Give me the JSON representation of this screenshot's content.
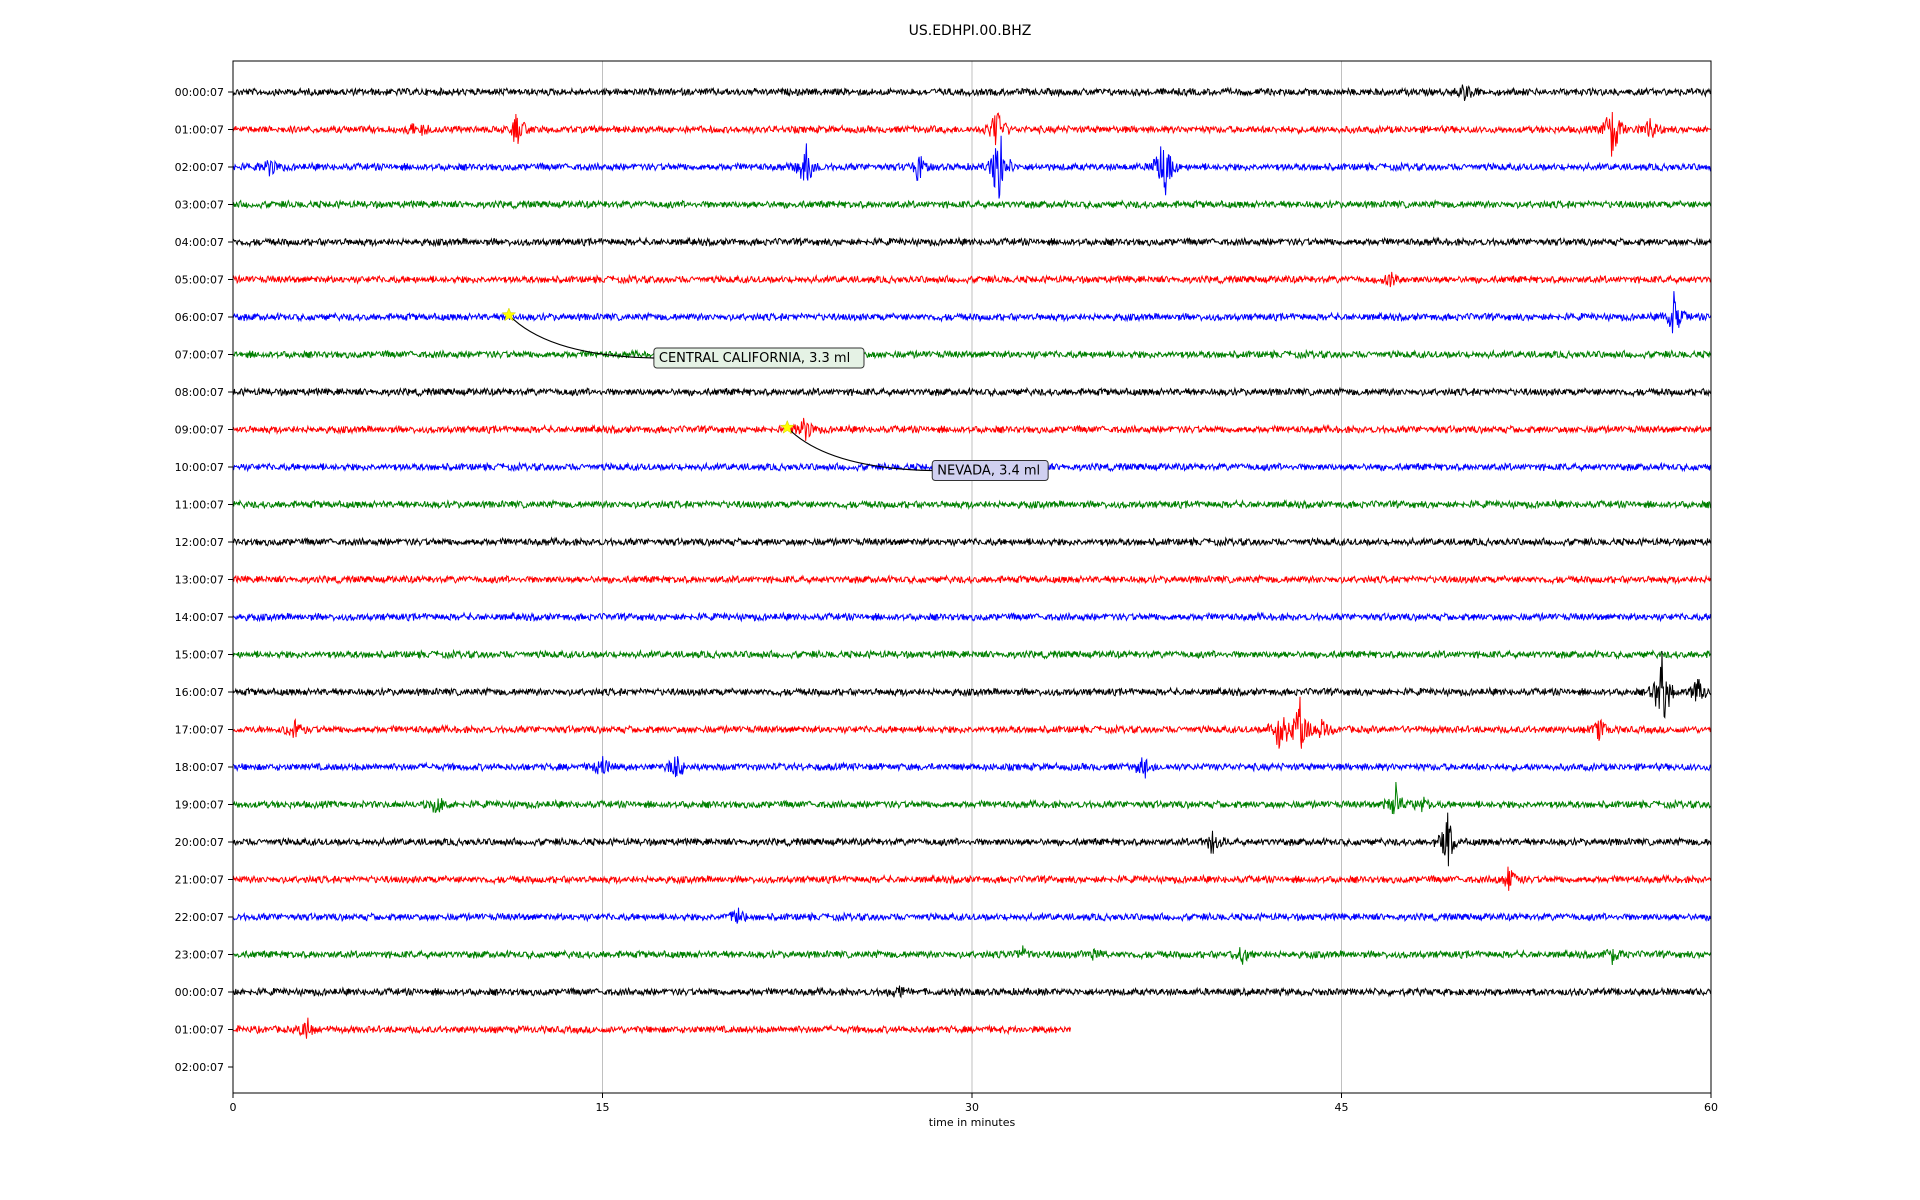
{
  "chart_data": {
    "type": "line",
    "title": "US.EDHPI.00.BHZ",
    "xlabel": "time in minutes",
    "ylabel": "",
    "xlim": [
      0,
      60
    ],
    "x_ticks": [
      0,
      15,
      30,
      45,
      60
    ],
    "grid": "vertical",
    "trace_colors": [
      "#000000",
      "#ff0000",
      "#0000ff",
      "#008000"
    ],
    "rows": [
      {
        "label": "00:00:07",
        "end": 60,
        "events": [
          [
            50,
            0.4
          ]
        ]
      },
      {
        "label": "01:00:07",
        "end": 60,
        "events": [
          [
            7.5,
            0.5
          ],
          [
            11.5,
            0.7
          ],
          [
            31,
            1.0
          ],
          [
            56,
            1.6
          ],
          [
            57.5,
            0.5
          ]
        ]
      },
      {
        "label": "02:00:07",
        "end": 60,
        "events": [
          [
            1.5,
            0.4
          ],
          [
            23.3,
            1.0
          ],
          [
            27.8,
            0.5
          ],
          [
            31.1,
            1.8
          ],
          [
            37.8,
            1.5
          ]
        ]
      },
      {
        "label": "03:00:07",
        "end": 60,
        "events": []
      },
      {
        "label": "04:00:07",
        "end": 60,
        "events": []
      },
      {
        "label": "05:00:07",
        "end": 60,
        "events": [
          [
            47,
            0.3
          ]
        ]
      },
      {
        "label": "06:00:07",
        "end": 60,
        "events": [
          [
            58.5,
            0.9
          ]
        ]
      },
      {
        "label": "07:00:07",
        "end": 60,
        "events": []
      },
      {
        "label": "08:00:07",
        "end": 60,
        "events": []
      },
      {
        "label": "09:00:07",
        "end": 60,
        "events": [
          [
            23.2,
            0.6
          ]
        ]
      },
      {
        "label": "10:00:07",
        "end": 60,
        "events": []
      },
      {
        "label": "11:00:07",
        "end": 60,
        "events": []
      },
      {
        "label": "12:00:07",
        "end": 60,
        "events": []
      },
      {
        "label": "13:00:07",
        "end": 60,
        "events": []
      },
      {
        "label": "14:00:07",
        "end": 60,
        "events": []
      },
      {
        "label": "15:00:07",
        "end": 60,
        "events": []
      },
      {
        "label": "16:00:07",
        "end": 60,
        "events": [
          [
            58,
            1.8
          ],
          [
            59.5,
            0.6
          ]
        ]
      },
      {
        "label": "17:00:07",
        "end": 60,
        "events": [
          [
            2.5,
            0.6
          ],
          [
            42.5,
            1.2
          ],
          [
            43.3,
            1.4
          ],
          [
            44.2,
            0.5
          ],
          [
            55.5,
            0.4
          ]
        ]
      },
      {
        "label": "18:00:07",
        "end": 60,
        "events": [
          [
            15,
            0.4
          ],
          [
            18,
            0.5
          ],
          [
            37,
            0.5
          ]
        ]
      },
      {
        "label": "19:00:07",
        "end": 60,
        "events": [
          [
            8.3,
            0.4
          ],
          [
            47.2,
            0.7
          ],
          [
            48.3,
            0.3
          ]
        ]
      },
      {
        "label": "20:00:07",
        "end": 60,
        "events": [
          [
            39.8,
            0.6
          ],
          [
            49.3,
            1.1
          ]
        ]
      },
      {
        "label": "21:00:07",
        "end": 60,
        "events": [
          [
            51.8,
            0.5
          ]
        ]
      },
      {
        "label": "22:00:07",
        "end": 60,
        "events": [
          [
            20.5,
            0.4
          ]
        ]
      },
      {
        "label": "23:00:07",
        "end": 60,
        "events": [
          [
            32,
            0.3
          ],
          [
            35,
            0.3
          ],
          [
            41,
            0.4
          ],
          [
            56,
            0.4
          ]
        ]
      },
      {
        "label": "00:00:07",
        "end": 60,
        "events": [
          [
            27,
            0.3
          ]
        ]
      },
      {
        "label": "01:00:07",
        "end": 34,
        "events": [
          [
            3,
            0.4
          ]
        ]
      },
      {
        "label": "02:00:07",
        "end": 0,
        "events": []
      }
    ],
    "annotations": [
      {
        "text": "CENTRAL CALIFORNIA, 3.3 ml",
        "row": 6,
        "x": 11.2,
        "marker": "star",
        "marker_color": "#ffff00",
        "box_color": "#e5f2e5"
      },
      {
        "text": "NEVADA, 3.4 ml",
        "row": 9,
        "x": 22.5,
        "marker": "star",
        "marker_color": "#ffff00",
        "box_color": "#d0d0f0"
      }
    ]
  }
}
